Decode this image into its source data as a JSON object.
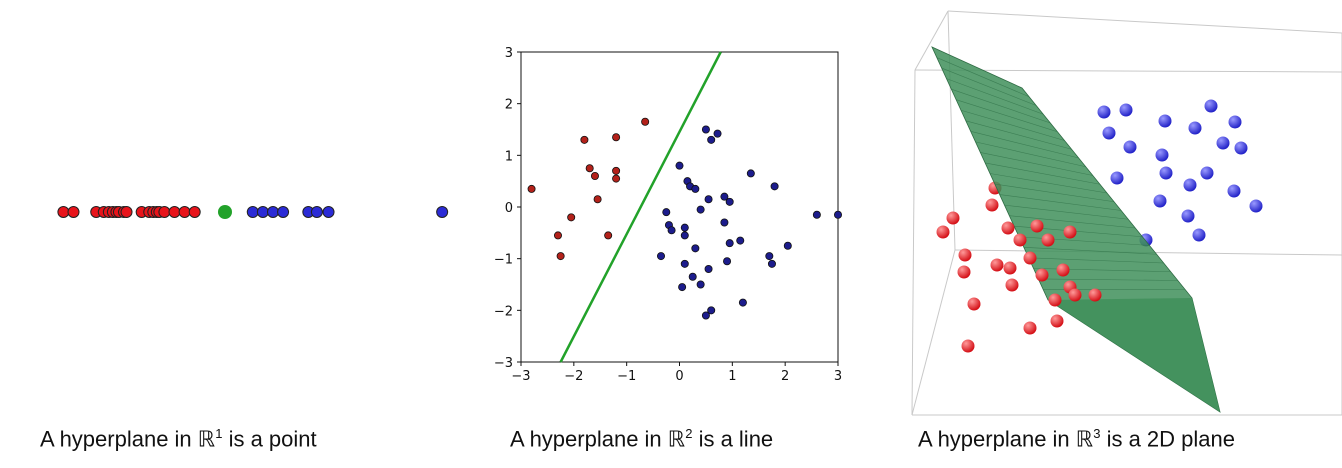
{
  "colors": {
    "red": "#e8141b",
    "blue": "#2b2bd6",
    "green": "#22a22a",
    "navy": "#1c1c8c",
    "darkred": "#b3211a",
    "plane": "#3f8f5a"
  },
  "captions": [
    {
      "prefix": "A hyperplane in ",
      "space": "ℝ",
      "exp": "1",
      "suffix": " is a point"
    },
    {
      "prefix": "A hyperplane in ",
      "space": "ℝ",
      "exp": "2",
      "suffix": " is a line"
    },
    {
      "prefix": "A hyperplane in ",
      "space": "ℝ",
      "exp": "3",
      "suffix": " is a 2D plane"
    }
  ],
  "chart_data": [
    {
      "type": "scatter",
      "title": "",
      "dimension": 1,
      "series": [
        {
          "color": "red",
          "x": [
            -3.2,
            -3.0,
            -2.55,
            -2.4,
            -2.3,
            -2.22,
            -2.15,
            -2.1,
            -2.0,
            -1.95,
            -1.65,
            -1.5,
            -1.42,
            -1.35,
            -1.3,
            -1.2,
            -1.0,
            -0.8,
            -0.6
          ]
        },
        {
          "color": "blue",
          "x": [
            0.55,
            0.75,
            0.95,
            1.15,
            1.65,
            1.82,
            2.05,
            4.3
          ]
        },
        {
          "color": "green",
          "x": [
            0.0
          ]
        }
      ]
    },
    {
      "type": "scatter",
      "title": "",
      "dimension": 2,
      "xlim": [
        -3,
        3
      ],
      "ylim": [
        -3,
        3
      ],
      "xticks": [
        "−3",
        "−2",
        "−1",
        "0",
        "1",
        "2",
        "3"
      ],
      "yticks": [
        "−3",
        "−2",
        "−1",
        "0",
        "1",
        "2",
        "3"
      ],
      "series": [
        {
          "color": "darkred",
          "x": [
            -2.8,
            -1.8,
            -1.2,
            -0.65,
            -1.7,
            -1.6,
            -1.2,
            -1.2,
            -1.55,
            -2.05,
            -1.35,
            -2.3,
            -2.25
          ],
          "y": [
            0.35,
            1.3,
            1.35,
            1.65,
            0.75,
            0.6,
            0.7,
            0.55,
            0.15,
            -0.2,
            -0.55,
            -0.55,
            -0.95
          ]
        },
        {
          "color": "navy",
          "x": [
            0.5,
            0.6,
            0.72,
            0.0,
            0.15,
            0.2,
            0.3,
            -0.25,
            0.55,
            0.85,
            0.4,
            0.95,
            -0.2,
            0.1,
            0.85,
            -0.15,
            0.1,
            0.95,
            0.3,
            1.15,
            1.35,
            1.8,
            2.6,
            3.0,
            1.7,
            2.05,
            1.75,
            0.9,
            0.55,
            0.1,
            -0.35,
            0.25,
            0.05,
            1.2,
            0.6,
            0.5,
            0.4
          ],
          "y": [
            1.5,
            1.3,
            1.42,
            0.8,
            0.5,
            0.4,
            0.35,
            -0.1,
            0.15,
            0.2,
            -0.05,
            0.1,
            -0.35,
            -0.4,
            -0.3,
            -0.45,
            -0.55,
            -0.7,
            -0.8,
            -0.65,
            0.65,
            0.4,
            -0.15,
            -0.15,
            -0.95,
            -0.75,
            -1.1,
            -1.05,
            -1.2,
            -1.1,
            -0.95,
            -1.35,
            -1.55,
            -1.85,
            -2.0,
            -2.1,
            -1.5
          ]
        },
        {
          "color": "green",
          "kind": "line",
          "x": [
            -2.25,
            0.78
          ],
          "y": [
            -3.0,
            3.0
          ]
        }
      ]
    },
    {
      "type": "scatter",
      "title": "",
      "dimension": 3,
      "series": [
        {
          "color": "red",
          "count": 24
        },
        {
          "color": "blue",
          "count": 22
        },
        {
          "color": "plane",
          "kind": "plane"
        }
      ]
    }
  ]
}
